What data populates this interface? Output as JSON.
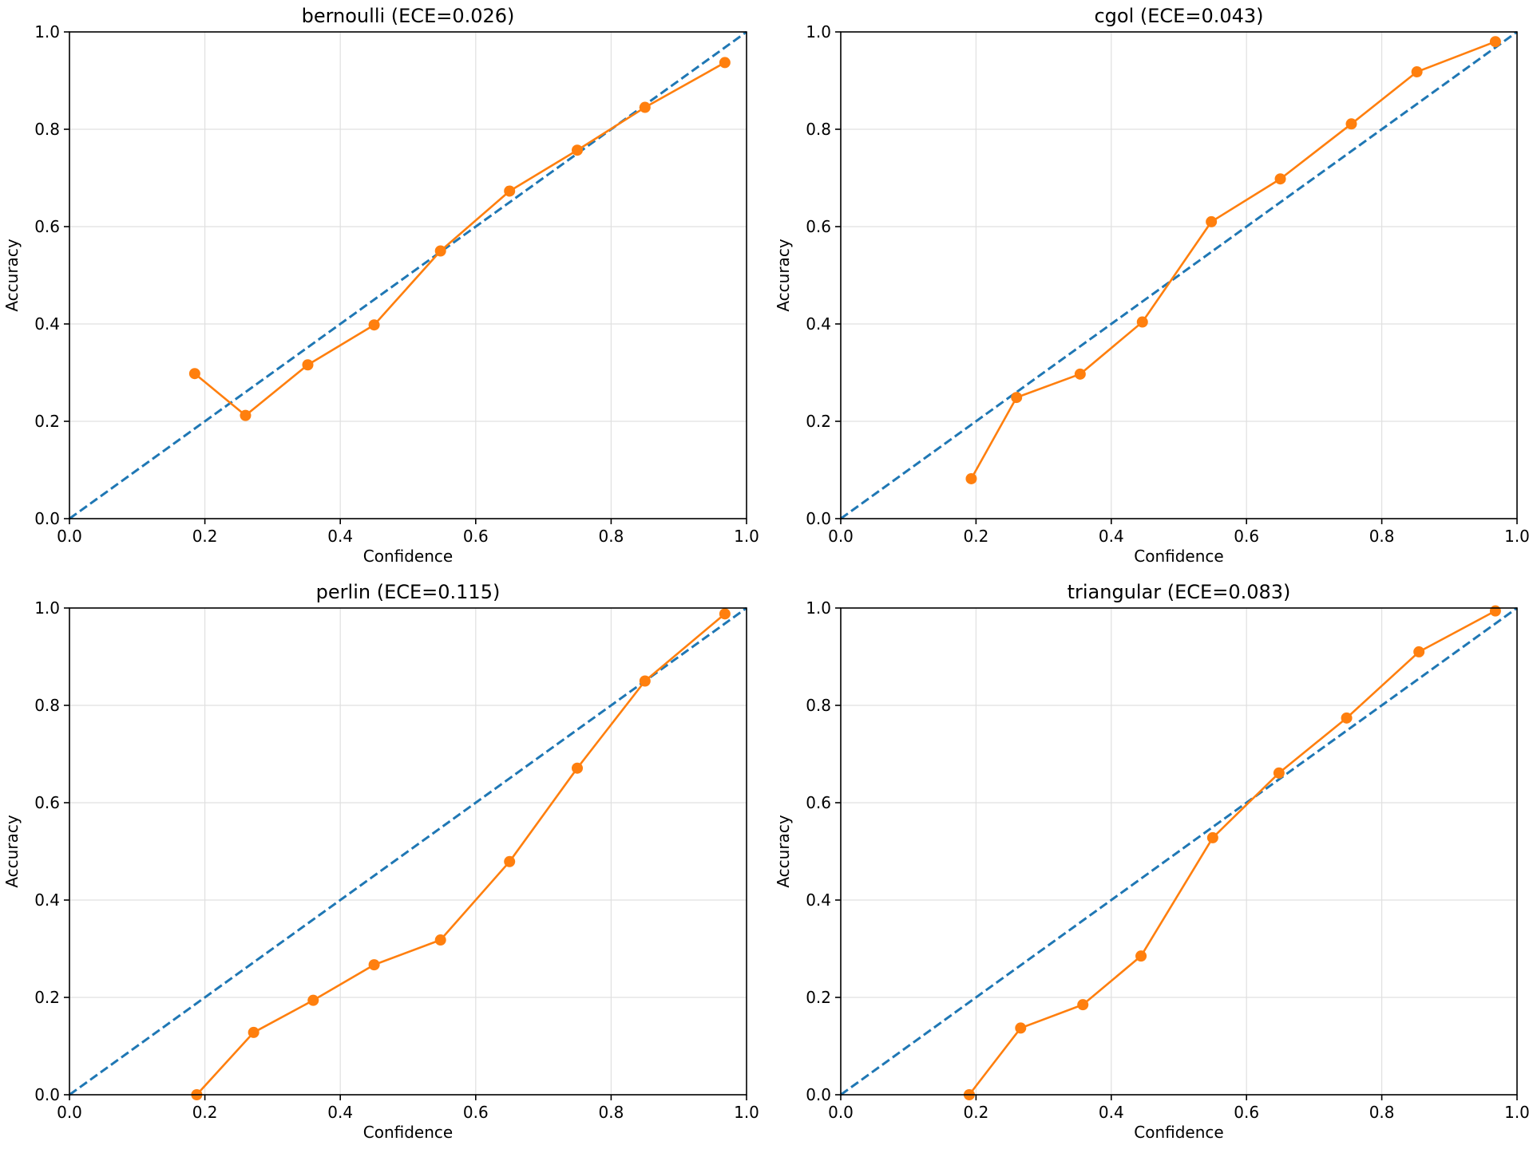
{
  "chart_data": [
    {
      "type": "line",
      "title": "bernoulli (ECE=0.026)",
      "xlabel": "Confidence",
      "ylabel": "Accuracy",
      "xlim": [
        0.0,
        1.0
      ],
      "ylim": [
        0.0,
        1.0
      ],
      "xticks": [
        "0.0",
        "0.2",
        "0.4",
        "0.6",
        "0.8",
        "1.0"
      ],
      "yticks": [
        "0.0",
        "0.2",
        "0.4",
        "0.6",
        "0.8",
        "1.0"
      ],
      "grid": true,
      "series": [
        {
          "name": "perfect calibration",
          "style": "dashed",
          "color": "#1f77b4",
          "x": [
            0.0,
            1.0
          ],
          "y": [
            0.0,
            1.0
          ]
        },
        {
          "name": "model",
          "style": "solid-markers",
          "color": "#ff7f0e",
          "x": [
            0.185,
            0.26,
            0.352,
            0.45,
            0.548,
            0.65,
            0.75,
            0.85,
            0.968
          ],
          "y": [
            0.298,
            0.212,
            0.316,
            0.398,
            0.55,
            0.673,
            0.757,
            0.845,
            0.937
          ]
        }
      ]
    },
    {
      "type": "line",
      "title": "cgol (ECE=0.043)",
      "xlabel": "Confidence",
      "ylabel": "Accuracy",
      "xlim": [
        0.0,
        1.0
      ],
      "ylim": [
        0.0,
        1.0
      ],
      "xticks": [
        "0.0",
        "0.2",
        "0.4",
        "0.6",
        "0.8",
        "1.0"
      ],
      "yticks": [
        "0.0",
        "0.2",
        "0.4",
        "0.6",
        "0.8",
        "1.0"
      ],
      "grid": true,
      "series": [
        {
          "name": "perfect calibration",
          "style": "dashed",
          "color": "#1f77b4",
          "x": [
            0.0,
            1.0
          ],
          "y": [
            0.0,
            1.0
          ]
        },
        {
          "name": "model",
          "style": "solid-markers",
          "color": "#ff7f0e",
          "x": [
            0.193,
            0.26,
            0.354,
            0.446,
            0.548,
            0.65,
            0.755,
            0.852,
            0.968
          ],
          "y": [
            0.082,
            0.249,
            0.297,
            0.404,
            0.61,
            0.698,
            0.811,
            0.918,
            0.98
          ]
        }
      ]
    },
    {
      "type": "line",
      "title": "perlin (ECE=0.115)",
      "xlabel": "Confidence",
      "ylabel": "Accuracy",
      "xlim": [
        0.0,
        1.0
      ],
      "ylim": [
        0.0,
        1.0
      ],
      "xticks": [
        "0.0",
        "0.2",
        "0.4",
        "0.6",
        "0.8",
        "1.0"
      ],
      "yticks": [
        "0.0",
        "0.2",
        "0.4",
        "0.6",
        "0.8",
        "1.0"
      ],
      "grid": true,
      "series": [
        {
          "name": "perfect calibration",
          "style": "dashed",
          "color": "#1f77b4",
          "x": [
            0.0,
            1.0
          ],
          "y": [
            0.0,
            1.0
          ]
        },
        {
          "name": "model",
          "style": "solid-markers",
          "color": "#ff7f0e",
          "x": [
            0.188,
            0.272,
            0.36,
            0.45,
            0.548,
            0.65,
            0.75,
            0.85,
            0.968
          ],
          "y": [
            0.0,
            0.128,
            0.194,
            0.267,
            0.318,
            0.479,
            0.671,
            0.85,
            0.988
          ]
        }
      ]
    },
    {
      "type": "line",
      "title": "triangular (ECE=0.083)",
      "xlabel": "Confidence",
      "ylabel": "Accuracy",
      "xlim": [
        0.0,
        1.0
      ],
      "ylim": [
        0.0,
        1.0
      ],
      "xticks": [
        "0.0",
        "0.2",
        "0.4",
        "0.6",
        "0.8",
        "1.0"
      ],
      "yticks": [
        "0.0",
        "0.2",
        "0.4",
        "0.6",
        "0.8",
        "1.0"
      ],
      "grid": true,
      "series": [
        {
          "name": "perfect calibration",
          "style": "dashed",
          "color": "#1f77b4",
          "x": [
            0.0,
            1.0
          ],
          "y": [
            0.0,
            1.0
          ]
        },
        {
          "name": "model",
          "style": "solid-markers",
          "color": "#ff7f0e",
          "x": [
            0.19,
            0.266,
            0.358,
            0.444,
            0.55,
            0.648,
            0.748,
            0.855,
            0.968
          ],
          "y": [
            0.0,
            0.137,
            0.185,
            0.285,
            0.528,
            0.661,
            0.774,
            0.91,
            0.994
          ]
        }
      ]
    }
  ],
  "colors": {
    "grid": "#e0e0e0",
    "axes": "#000000",
    "background": "#ffffff"
  }
}
